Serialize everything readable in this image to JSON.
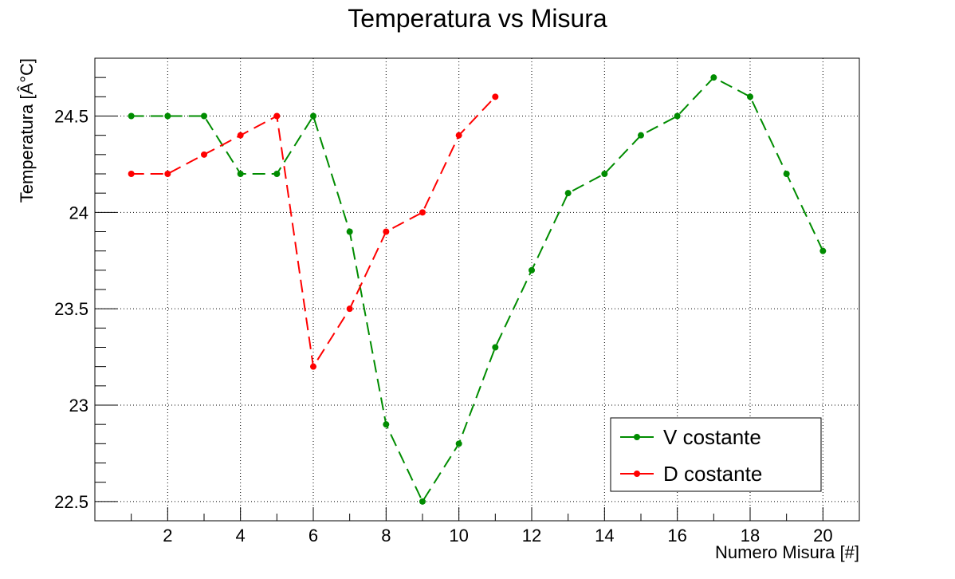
{
  "chart_data": {
    "type": "line",
    "title": "Temperatura vs Misura",
    "xlabel": "Numero Misura [#]",
    "ylabel": "Temperatura [Â°C]",
    "xlim": [
      0,
      21
    ],
    "ylim": [
      22.4,
      24.8
    ],
    "x_ticks": [
      2,
      4,
      6,
      8,
      10,
      12,
      14,
      16,
      18,
      20
    ],
    "y_ticks": [
      22.5,
      23,
      23.5,
      24,
      24.5
    ],
    "x_tick_labels": [
      "2",
      "4",
      "6",
      "8",
      "10",
      "12",
      "14",
      "16",
      "18",
      "20"
    ],
    "y_tick_labels": [
      "22.5",
      "23",
      "23.5",
      "24",
      "24.5"
    ],
    "grid": true,
    "legend_position": "bottom-right",
    "series": [
      {
        "name": "V costante",
        "color": "#008c00",
        "x": [
          1,
          2,
          3,
          4,
          5,
          6,
          7,
          8,
          9,
          10,
          11,
          12,
          13,
          14,
          15,
          16,
          17,
          18,
          19,
          20
        ],
        "y": [
          24.5,
          24.5,
          24.5,
          24.2,
          24.2,
          24.5,
          23.9,
          22.9,
          22.5,
          22.8,
          23.3,
          23.7,
          24.1,
          24.2,
          24.4,
          24.5,
          24.7,
          24.6,
          24.2,
          23.8
        ]
      },
      {
        "name": "D costante",
        "color": "#ff0000",
        "x": [
          1,
          2,
          3,
          4,
          5,
          6,
          7,
          8,
          9,
          10,
          11
        ],
        "y": [
          24.2,
          24.2,
          24.3,
          24.4,
          24.5,
          23.2,
          23.5,
          23.9,
          24.0,
          24.4,
          24.6
        ]
      }
    ]
  }
}
